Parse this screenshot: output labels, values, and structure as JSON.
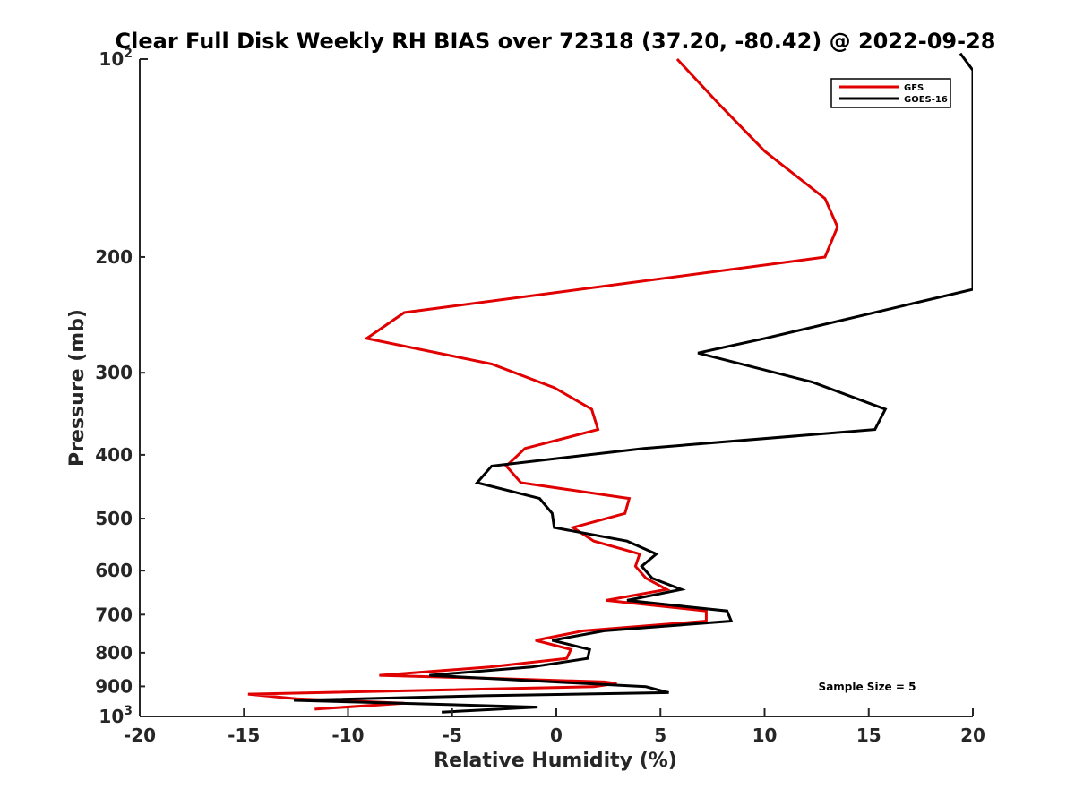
{
  "chart_data": {
    "type": "line",
    "title": "Clear Full Disk Weekly RH BIAS over 72318 (37.20, -80.42) @ 2022-09-28",
    "xlabel": "Relative Humidity (%)",
    "ylabel": "Pressure (mb)",
    "xlim": [
      -20,
      20
    ],
    "ylim": [
      100,
      1000
    ],
    "y_scale": "log",
    "y_reversed": true,
    "x_ticks": [
      "-20",
      "-15",
      "-10",
      "-5",
      "0",
      "5",
      "10",
      "15",
      "20"
    ],
    "y_tick_labels": [
      {
        "value": 100,
        "base": "10",
        "exp": "2"
      },
      {
        "value": 200,
        "text": "200"
      },
      {
        "value": 300,
        "text": "300"
      },
      {
        "value": 400,
        "text": "400"
      },
      {
        "value": 500,
        "text": "500"
      },
      {
        "value": 600,
        "text": "600"
      },
      {
        "value": 700,
        "text": "700"
      },
      {
        "value": 800,
        "text": "800"
      },
      {
        "value": 900,
        "text": "900"
      },
      {
        "value": 1000,
        "base": "10",
        "exp": "3"
      }
    ],
    "grid": false,
    "legend_position": "top-right",
    "annotation": "Sample Size = 5",
    "series": [
      {
        "name": "GFS",
        "color": "#e00000",
        "points": [
          [
            5.8,
            100
          ],
          [
            7.8,
            117
          ],
          [
            10,
            138
          ],
          [
            12.9,
            163
          ],
          [
            13.5,
            180
          ],
          [
            12.9,
            200
          ],
          [
            -7.3,
            243
          ],
          [
            -9.1,
            266
          ],
          [
            -3.1,
            291
          ],
          [
            -0.1,
            316
          ],
          [
            1.7,
            341
          ],
          [
            2.0,
            366
          ],
          [
            -1.5,
            391
          ],
          [
            -2.4,
            416
          ],
          [
            -1.7,
            441
          ],
          [
            3.5,
            466
          ],
          [
            3.3,
            491
          ],
          [
            0.8,
            516
          ],
          [
            1.8,
            541
          ],
          [
            4.0,
            566
          ],
          [
            3.8,
            591
          ],
          [
            4.3,
            616
          ],
          [
            5.3,
            641
          ],
          [
            2.4,
            666
          ],
          [
            7.2,
            691
          ],
          [
            7.2,
            716
          ],
          [
            1.3,
            741
          ],
          [
            -1.0,
            766
          ],
          [
            0.7,
            791
          ],
          [
            0.5,
            816
          ],
          [
            -3.2,
            841
          ],
          [
            -8.5,
            866
          ],
          [
            -2.7,
            876
          ],
          [
            2.3,
            886
          ],
          [
            2.9,
            891
          ],
          [
            1.8,
            901
          ],
          [
            -14.8,
            925
          ],
          [
            -12.5,
            940
          ],
          [
            -7.3,
            955
          ],
          [
            -11.6,
            975
          ]
        ]
      },
      {
        "name": "GOES-16",
        "color": "#000000",
        "points": [
          [
            19.4,
            98
          ],
          [
            20,
            104
          ],
          [
            20,
            224
          ],
          [
            10,
            266
          ],
          [
            6.8,
            280
          ],
          [
            12.3,
            310
          ],
          [
            15.8,
            341
          ],
          [
            15.3,
            366
          ],
          [
            4.2,
            391
          ],
          [
            -3.1,
            416
          ],
          [
            -3.8,
            441
          ],
          [
            -0.8,
            466
          ],
          [
            -0.2,
            491
          ],
          [
            -0.1,
            516
          ],
          [
            3.4,
            541
          ],
          [
            4.8,
            566
          ],
          [
            4.1,
            591
          ],
          [
            4.6,
            616
          ],
          [
            6.0,
            641
          ],
          [
            3.4,
            666
          ],
          [
            8.2,
            691
          ],
          [
            8.4,
            716
          ],
          [
            2.3,
            741
          ],
          [
            -0.2,
            766
          ],
          [
            1.6,
            791
          ],
          [
            1.5,
            816
          ],
          [
            -1.2,
            841
          ],
          [
            -6.1,
            866
          ],
          [
            4.3,
            901
          ],
          [
            5.4,
            920
          ],
          [
            -3.5,
            930
          ],
          [
            -12.6,
            945
          ],
          [
            -0.9,
            968
          ],
          [
            -5.5,
            985
          ]
        ]
      }
    ]
  }
}
